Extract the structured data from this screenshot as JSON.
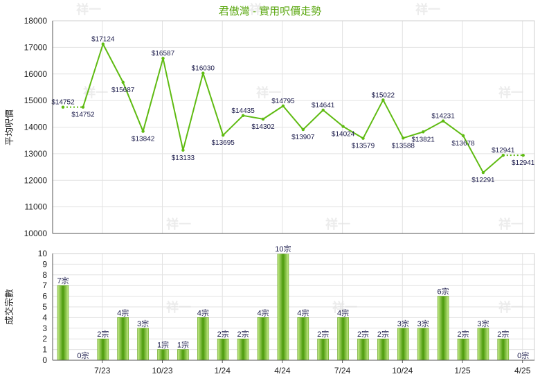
{
  "chart_data": [
    {
      "type": "line",
      "title": "君傲灣 - 實用呎價走勢",
      "ylabel": "平均呎價",
      "ylim": [
        10000,
        18000
      ],
      "yticks": [
        10000,
        11000,
        12000,
        13000,
        14000,
        15000,
        16000,
        17000,
        18000
      ],
      "values": [
        14752,
        14752,
        17124,
        15687,
        13842,
        16587,
        13133,
        16030,
        13695,
        14435,
        14302,
        14795,
        13907,
        14641,
        14024,
        13579,
        15022,
        13588,
        13821,
        14231,
        13678,
        12291,
        12941,
        12941
      ],
      "labels": [
        "$14752",
        "$14752",
        "$17124",
        "$15687",
        "$13842",
        "$16587",
        "$13133",
        "$16030",
        "$13695",
        "$14435",
        "$14302",
        "$14795",
        "$13907",
        "$14641",
        "$14024",
        "$13579",
        "$15022",
        "$13588",
        "$13821",
        "$14231",
        "$13678",
        "$12291",
        "$12941",
        "$12941"
      ],
      "dotted_segments": [
        0,
        22
      ],
      "grid": true
    },
    {
      "type": "bar",
      "ylabel": "成交宗數",
      "ylim": [
        0,
        10
      ],
      "yticks": [
        0,
        1,
        2,
        3,
        4,
        5,
        6,
        7,
        8,
        9,
        10
      ],
      "values": [
        7,
        0,
        2,
        4,
        3,
        1,
        1,
        4,
        2,
        2,
        4,
        10,
        4,
        2,
        4,
        2,
        2,
        3,
        3,
        6,
        2,
        3,
        2,
        0
      ],
      "labels": [
        "7宗",
        "0宗",
        "2宗",
        "4宗",
        "3宗",
        "1宗",
        "1宗",
        "4宗",
        "2宗",
        "2宗",
        "4宗",
        "10宗",
        "4宗",
        "2宗",
        "4宗",
        "2宗",
        "2宗",
        "3宗",
        "3宗",
        "6宗",
        "2宗",
        "3宗",
        "2宗",
        "0宗"
      ],
      "xticks": [
        {
          "label": "7/23",
          "index": 2
        },
        {
          "label": "10/23",
          "index": 5
        },
        {
          "label": "1/24",
          "index": 8
        },
        {
          "label": "4/24",
          "index": 11
        },
        {
          "label": "7/24",
          "index": 14
        },
        {
          "label": "10/24",
          "index": 17
        },
        {
          "label": "1/25",
          "index": 20
        },
        {
          "label": "4/25",
          "index": 23
        }
      ],
      "grid": true
    }
  ],
  "colors": {
    "line": "#5fbb12",
    "bar_light": "#c8ec8c",
    "bar_dark": "#4a9a0a",
    "grid": "#e2e2e2",
    "axis": "#555555"
  },
  "watermark": "祥一"
}
